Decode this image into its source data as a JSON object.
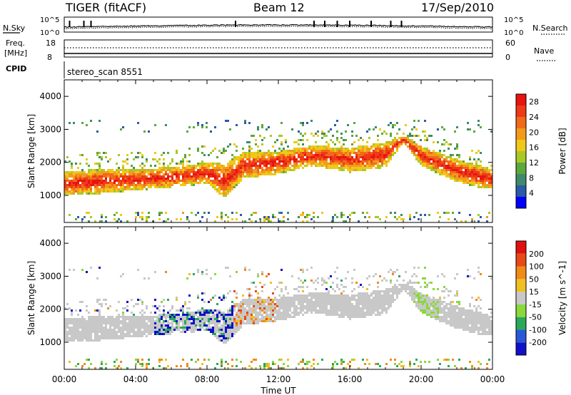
{
  "header": {
    "station": "TIGER (fitACF)",
    "beam": "Beam 12",
    "date": "17/Sep/2010"
  },
  "noise_panel": {
    "left_label": "N.Sky",
    "right_label": "N.Search",
    "left_ticks": [
      "10^5",
      "10^0"
    ],
    "right_ticks": [
      "10^5",
      "10^0"
    ]
  },
  "freq_panel": {
    "left_label_1": "Freq.",
    "left_label_2": "[MHz]",
    "right_label": "Nave",
    "left_ticks": [
      "18",
      "8"
    ],
    "right_ticks": [
      "60",
      "0"
    ]
  },
  "cpid": {
    "label": "CPID",
    "value": "stereo_scan 8551"
  },
  "chart_data": [
    {
      "type": "heatmap",
      "quantity": "Power",
      "ylabel": "Slant Range [km]",
      "xlabel": "Time UT",
      "x_ticks": [
        "00:00",
        "04:00",
        "08:00",
        "12:00",
        "16:00",
        "20:00",
        "00:00"
      ],
      "xlim_hours": [
        0,
        24
      ],
      "ylim": [
        180,
        4500
      ],
      "y_ticks": [
        1000,
        2000,
        3000,
        4000
      ],
      "colorbar": {
        "label": "Power [dB]",
        "ticks": [
          4,
          8,
          12,
          16,
          20,
          24,
          28
        ],
        "range": [
          0,
          30
        ],
        "colors": [
          "#0000ff",
          "#2a5aa8",
          "#3f8a6a",
          "#5ca83c",
          "#a8c826",
          "#f0c818",
          "#f49a1a",
          "#f06a1a",
          "#ee3a18",
          "#e81410"
        ]
      },
      "echo_band_trend": {
        "time_hours": [
          0,
          2,
          4,
          6,
          8,
          9,
          10,
          12,
          14,
          16,
          18,
          19,
          20,
          22,
          24
        ],
        "lower_edge_km": [
          1000,
          1050,
          1150,
          1250,
          1350,
          900,
          1500,
          1650,
          1900,
          1700,
          1850,
          2600,
          1900,
          1400,
          1150
        ],
        "upper_edge_km": [
          1700,
          1800,
          1800,
          1850,
          2000,
          1950,
          2300,
          2350,
          2500,
          2450,
          2600,
          2800,
          2500,
          2100,
          1800
        ]
      }
    },
    {
      "type": "heatmap",
      "quantity": "Velocity",
      "ylabel": "Slant Range [km]",
      "xlabel": "Time UT",
      "x_ticks": [
        "00:00",
        "04:00",
        "08:00",
        "12:00",
        "16:00",
        "20:00",
        "00:00"
      ],
      "xlim_hours": [
        0,
        24
      ],
      "ylim": [
        180,
        4500
      ],
      "y_ticks": [
        1000,
        2000,
        3000,
        4000
      ],
      "colorbar": {
        "label": "Velocity [m s^-1]",
        "ticks": [
          200,
          100,
          50,
          15,
          -15,
          -50,
          -100,
          -200
        ],
        "colors": [
          "#1010c8",
          "#2858d8",
          "#2aa85a",
          "#8ad83a",
          "#c8c8c8",
          "#f0c020",
          "#f08a18",
          "#e84818",
          "#e01010"
        ]
      }
    }
  ],
  "x_axis": {
    "ticks": [
      "00:00",
      "04:00",
      "08:00",
      "12:00",
      "16:00",
      "20:00",
      "00:00"
    ],
    "label": "Time UT"
  },
  "colors": {
    "ground_scatter": "#c8c8c8",
    "axis": "#000000",
    "background": "#ffffff"
  }
}
